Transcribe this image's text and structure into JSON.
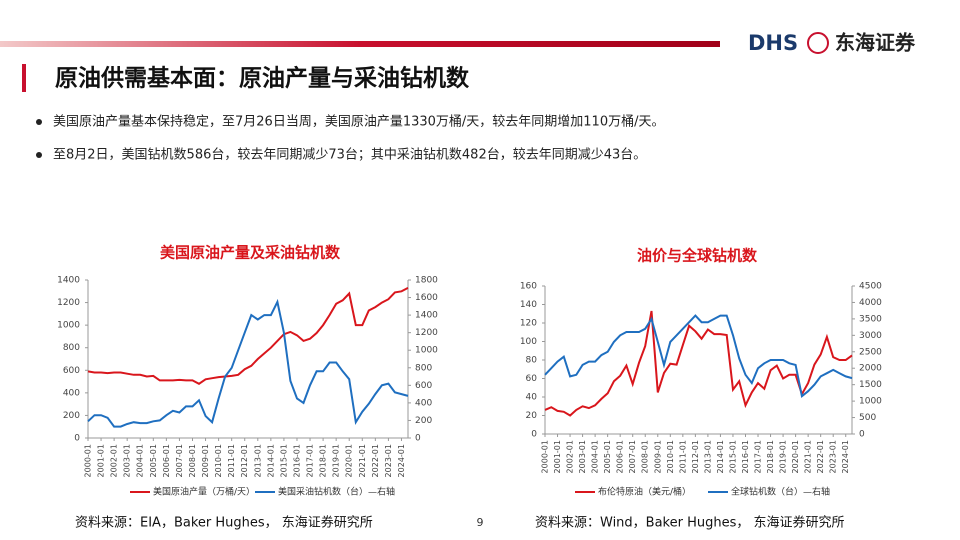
{
  "header": {
    "logo": "DHS",
    "brand": "东海证券"
  },
  "title": "原油供需基本面：原油产量与采油钻机数",
  "bullets": [
    "美国原油产量基本保持稳定，至7月26日当周，美国原油产量1330万桶/天，较去年同期增加110万桶/天。",
    "至8月2日，美国钻机数586台，较去年同期减少73台；其中采油钻机数482台，较去年同期减少43台。"
  ],
  "chart_data": [
    {
      "type": "line",
      "title": "美国原油产量及采油钻机数",
      "categories": [
        "2000-01",
        null,
        "2001-01",
        null,
        "2002-01",
        null,
        "2003-01",
        null,
        "2004-01",
        null,
        "2005-01",
        null,
        "2006-01",
        null,
        "2007-01",
        null,
        "2008-01",
        null,
        "2009-01",
        null,
        "2010-01",
        null,
        "2011-01",
        null,
        "2012-01",
        null,
        "2013-01",
        null,
        "2014-01",
        null,
        "2015-01",
        null,
        "2016-01",
        null,
        "2017-01",
        null,
        "2018-01",
        null,
        "2019-01",
        null,
        "2020-01",
        null,
        "2021-01",
        null,
        "2022-01",
        null,
        "2023-01",
        null,
        "2024-01",
        null
      ],
      "series": [
        {
          "name": "美国原油产量（万桶/天）",
          "color": "#d9161c",
          "values": [
            590,
            580,
            580,
            575,
            580,
            580,
            570,
            560,
            560,
            545,
            550,
            510,
            510,
            510,
            515,
            510,
            510,
            480,
            520,
            530,
            540,
            545,
            550,
            560,
            610,
            640,
            700,
            750,
            800,
            860,
            920,
            940,
            910,
            860,
            880,
            930,
            1000,
            1090,
            1190,
            1220,
            1280,
            1000,
            1000,
            1130,
            1160,
            1200,
            1230,
            1290,
            1300,
            1330
          ]
        },
        {
          "name": "美国采油钻机数（台）—右轴",
          "color": "#1f6fc0",
          "axis": "y2",
          "values": [
            190,
            260,
            260,
            230,
            130,
            130,
            160,
            180,
            170,
            170,
            190,
            200,
            260,
            310,
            290,
            360,
            360,
            430,
            250,
            180,
            450,
            700,
            800,
            1000,
            1200,
            1400,
            1350,
            1400,
            1400,
            1550,
            1200,
            650,
            450,
            400,
            600,
            760,
            760,
            860,
            860,
            760,
            670,
            180,
            300,
            390,
            500,
            600,
            620,
            520,
            500,
            480
          ]
        }
      ],
      "ylim": [
        0,
        1400
      ],
      "yticks": [
        0,
        200,
        400,
        600,
        800,
        1000,
        1200,
        1400
      ],
      "y2lim": [
        0,
        1800
      ],
      "y2ticks": [
        0,
        200,
        400,
        600,
        800,
        1000,
        1200,
        1400,
        1600,
        1800
      ],
      "source": "资料来源：EIA，Baker Hughes， 东海证券研究所"
    },
    {
      "type": "line",
      "title": "油价与全球钻机数",
      "categories": [
        "2000-01",
        null,
        "2001-01",
        null,
        "2002-01",
        null,
        "2003-01",
        null,
        "2004-01",
        null,
        "2005-01",
        null,
        "2006-01",
        null,
        "2007-01",
        null,
        "2008-01",
        null,
        "2009-01",
        null,
        "2010-01",
        null,
        "2011-01",
        null,
        "2012-01",
        null,
        "2013-01",
        null,
        "2014-01",
        null,
        "2015-01",
        null,
        "2016-01",
        null,
        "2017-01",
        null,
        "2018-01",
        null,
        "2019-01",
        null,
        "2020-01",
        null,
        "2021-01",
        null,
        "2022-01",
        null,
        "2023-01",
        null,
        "2024-01",
        null
      ],
      "series": [
        {
          "name": "布伦特原油（美元/桶）",
          "color": "#d9161c",
          "values": [
            26,
            29,
            25,
            24,
            20,
            26,
            30,
            28,
            31,
            38,
            44,
            57,
            63,
            74,
            54,
            77,
            95,
            133,
            45,
            66,
            76,
            75,
            96,
            117,
            111,
            103,
            113,
            108,
            108,
            107,
            48,
            57,
            31,
            45,
            55,
            49,
            69,
            74,
            60,
            64,
            64,
            43,
            55,
            75,
            86,
            105,
            83,
            80,
            80,
            85
          ]
        },
        {
          "name": "全球钻机数（台）—右轴",
          "color": "#1f6fc0",
          "axis": "y2",
          "values": [
            1800,
            2000,
            2200,
            2350,
            1750,
            1800,
            2100,
            2200,
            2200,
            2400,
            2500,
            2800,
            3000,
            3100,
            3100,
            3100,
            3200,
            3500,
            2800,
            2100,
            2800,
            3000,
            3200,
            3400,
            3600,
            3400,
            3400,
            3500,
            3600,
            3600,
            3000,
            2300,
            1800,
            1550,
            2000,
            2150,
            2250,
            2250,
            2250,
            2150,
            2100,
            1150,
            1300,
            1500,
            1750,
            1850,
            1950,
            1850,
            1750,
            1700
          ]
        }
      ],
      "ylim": [
        0,
        160
      ],
      "yticks": [
        0,
        20,
        40,
        60,
        80,
        100,
        120,
        140,
        160
      ],
      "y2lim": [
        0,
        4500
      ],
      "y2ticks": [
        0,
        500,
        1000,
        1500,
        2000,
        2500,
        3000,
        3500,
        4000,
        4500
      ],
      "source": "资料来源：Wind，Baker Hughes， 东海证券研究所"
    }
  ],
  "page_number": 9
}
